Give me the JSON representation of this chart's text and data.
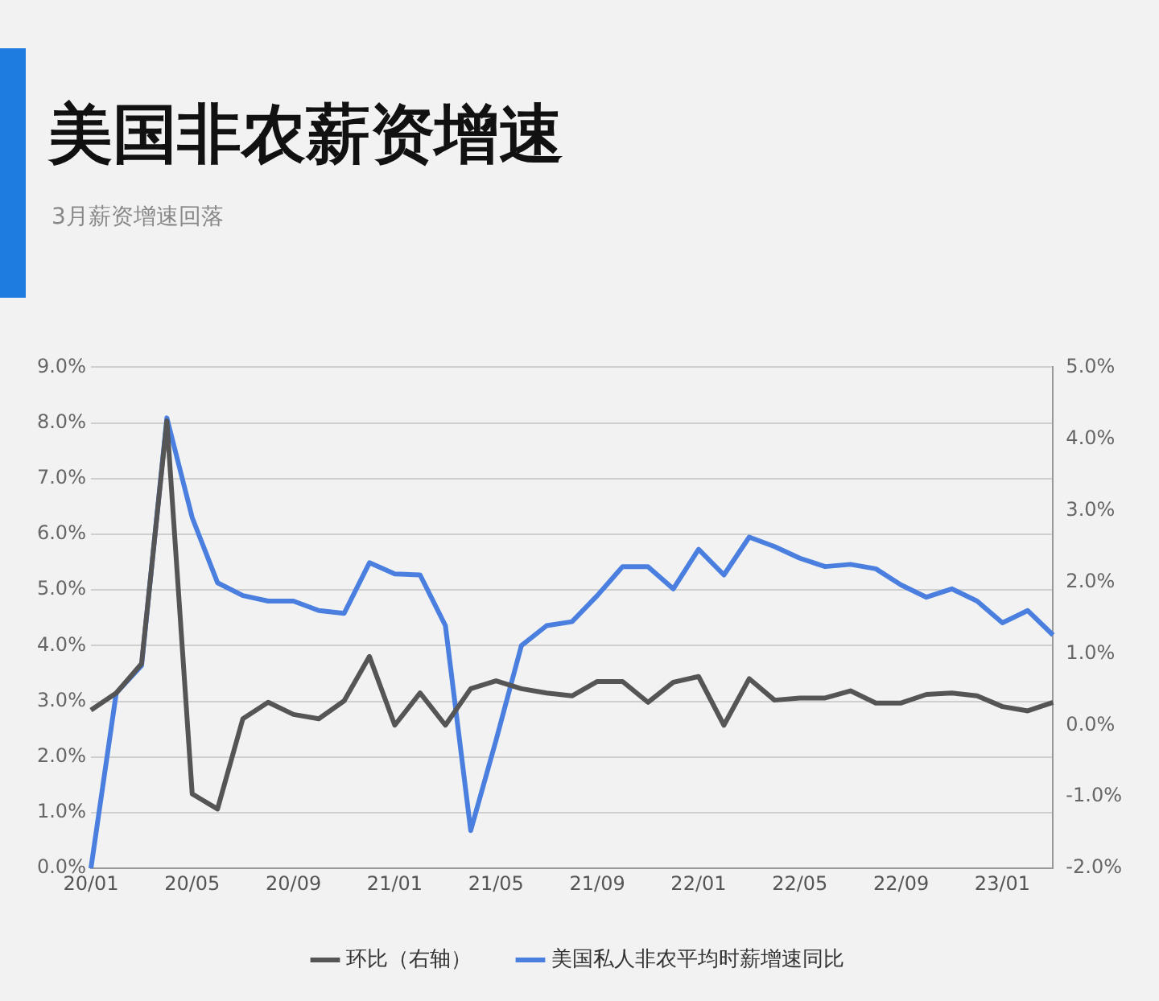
{
  "chart_data": {
    "type": "line",
    "title": "美国非农薪资增速",
    "subtitle": "3月薪资增速回落",
    "categories": [
      "20/01",
      null,
      null,
      null,
      "20/05",
      null,
      null,
      null,
      "20/09",
      null,
      null,
      null,
      "21/01",
      null,
      null,
      null,
      "21/05",
      null,
      null,
      null,
      "21/09",
      null,
      null,
      null,
      "22/01",
      null,
      null,
      null,
      "22/05",
      null,
      null,
      null,
      "22/09",
      null,
      null,
      null,
      "23/01",
      null,
      null
    ],
    "series": [
      {
        "name": "美国私人非农平均时薪增速同比",
        "color": "#4a7fe0",
        "values": [
          0.0,
          3.15,
          3.64,
          8.09,
          6.3,
          5.13,
          4.9,
          4.8,
          4.8,
          4.63,
          4.58,
          5.49,
          5.29,
          5.27,
          4.36,
          0.68,
          2.3,
          4.0,
          4.36,
          4.43,
          4.9,
          5.42,
          5.42,
          5.02,
          5.73,
          5.27,
          5.95,
          5.78,
          5.57,
          5.42,
          5.46,
          5.38,
          5.09,
          4.87,
          5.02,
          4.8,
          4.41,
          4.63,
          4.19
        ]
      },
      {
        "name": "环比（右轴）",
        "color": "#555555",
        "axis": "y2",
        "values": [
          0.21,
          0.45,
          0.86,
          4.25,
          -0.96,
          -1.17,
          0.09,
          0.32,
          0.15,
          0.09,
          0.34,
          0.96,
          0.0,
          0.45,
          0.0,
          0.51,
          0.62,
          0.51,
          0.45,
          0.41,
          0.61,
          0.61,
          0.32,
          0.6,
          0.68,
          0.0,
          0.65,
          0.35,
          0.38,
          0.38,
          0.48,
          0.31,
          0.31,
          0.43,
          0.45,
          0.41,
          0.26,
          0.2,
          0.32
        ]
      }
    ],
    "ylim": [
      0,
      9
    ],
    "yticks": [
      {
        "value": 0,
        "label": "0.0%"
      },
      {
        "value": 1,
        "label": "1.0%"
      },
      {
        "value": 2,
        "label": "2.0%"
      },
      {
        "value": 3,
        "label": "3.0%"
      },
      {
        "value": 4,
        "label": "4.0%"
      },
      {
        "value": 5,
        "label": "5.0%"
      },
      {
        "value": 6,
        "label": "6.0%"
      },
      {
        "value": 7,
        "label": "7.0%"
      },
      {
        "value": 8,
        "label": "8.0%"
      },
      {
        "value": 9,
        "label": "9.0%"
      }
    ],
    "y2lim": [
      -2,
      5
    ],
    "y2ticks": [
      {
        "value": -2,
        "label": "-2.0%"
      },
      {
        "value": -1,
        "label": "-1.0%"
      },
      {
        "value": 0,
        "label": "0.0%"
      },
      {
        "value": 1,
        "label": "1.0%"
      },
      {
        "value": 2,
        "label": "2.0%"
      },
      {
        "value": 3,
        "label": "3.0%"
      },
      {
        "value": 4,
        "label": "4.0%"
      },
      {
        "value": 5,
        "label": "5.0%"
      }
    ],
    "grid": "y",
    "legend": "bottom",
    "marker": "none",
    "line_style": "solid"
  }
}
